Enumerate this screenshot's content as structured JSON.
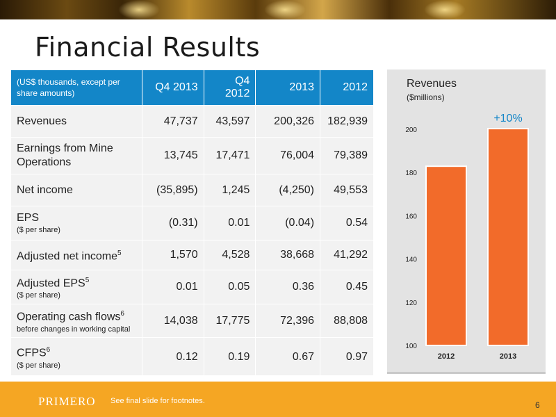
{
  "slide": {
    "title": "Financial Results",
    "footer_note": "See final slide for footnotes.",
    "logo_text": "PRIMERO",
    "page_number": "6"
  },
  "table": {
    "header_label": "(US$ thousands, except per share amounts)",
    "columns": [
      "Q4 2013",
      "Q4 2012",
      "2013",
      "2012"
    ],
    "rows": [
      {
        "label": "Revenues",
        "sub": "",
        "sup": "",
        "values": [
          "47,737",
          "43,597",
          "200,326",
          "182,939"
        ]
      },
      {
        "label": "Earnings from Mine Operations",
        "sub": "",
        "sup": "",
        "values": [
          "13,745",
          "17,471",
          "76,004",
          "79,389"
        ]
      },
      {
        "label": "Net income",
        "sub": "",
        "sup": "",
        "values": [
          "(35,895)",
          "1,245",
          "(4,250)",
          "49,553"
        ]
      },
      {
        "label": "EPS",
        "sub": "($ per share)",
        "sup": "",
        "values": [
          "(0.31)",
          "0.01",
          "(0.04)",
          "0.54"
        ]
      },
      {
        "label": "Adjusted net income",
        "sub": "",
        "sup": "5",
        "values": [
          "1,570",
          "4,528",
          "38,668",
          "41,292"
        ]
      },
      {
        "label": "Adjusted EPS",
        "sub": "($ per share)",
        "sup": "5",
        "values": [
          "0.01",
          "0.05",
          "0.36",
          "0.45"
        ]
      },
      {
        "label": "Operating cash flows",
        "sub": "before changes in working capital",
        "sup": "6",
        "values": [
          "14,038",
          "17,775",
          "72,396",
          "88,808"
        ]
      },
      {
        "label": "CFPS",
        "sub": "($ per share)",
        "sup": "6",
        "values": [
          "0.12",
          "0.19",
          "0.67",
          "0.97"
        ]
      }
    ]
  },
  "chart_data": {
    "type": "bar",
    "title": "Revenues",
    "ylabel": "($millions)",
    "categories": [
      "2012",
      "2013"
    ],
    "values": [
      182.9,
      200.3
    ],
    "ylim": [
      100,
      200
    ],
    "yticks": [
      "100",
      "120",
      "140",
      "160",
      "180",
      "200"
    ],
    "annotation": "+10%",
    "bar_color": "#f26b2a",
    "annotation_color": "#1386c8"
  },
  "colors": {
    "table_header": "#1386c8",
    "footer": "#f5a623",
    "bar": "#f26b2a"
  }
}
